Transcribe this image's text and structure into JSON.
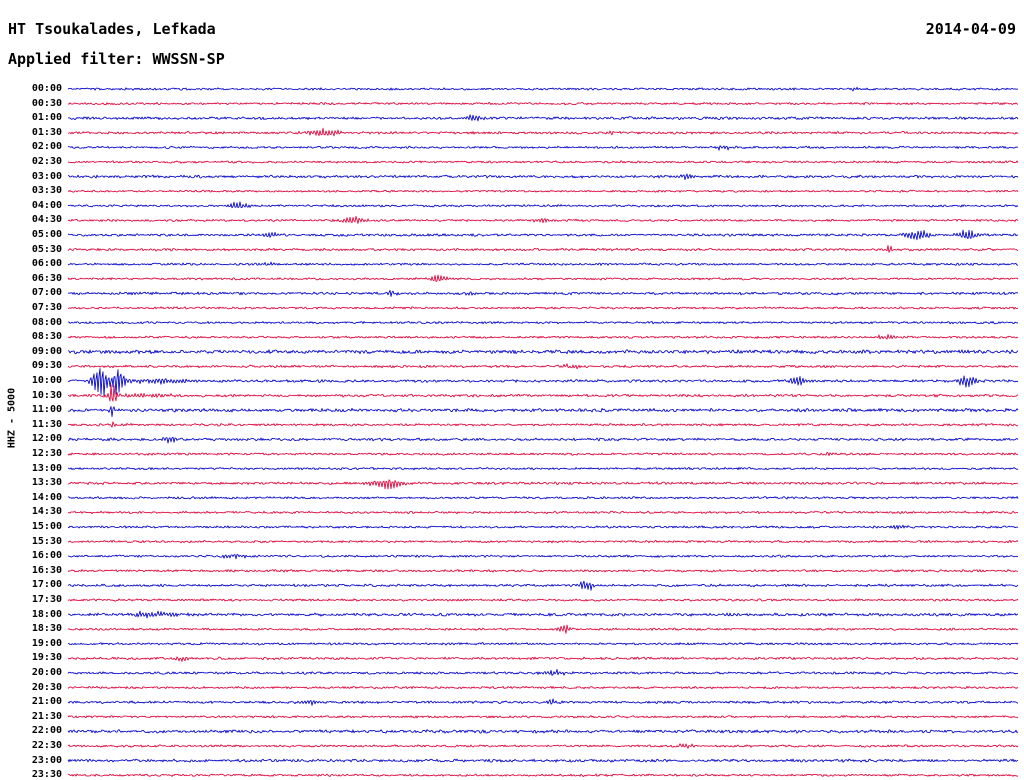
{
  "header": {
    "station": "HT Tsoukalades, Lefkada",
    "date": "2014-04-09",
    "filter": "Applied filter: WWSSN-SP"
  },
  "chart_data": {
    "type": "line",
    "title": "HT Tsoukalades, Lefkada",
    "subtitle": "Applied filter: WWSSN-SP",
    "date": "2014-04-09",
    "ylabel": "HHZ - 5000",
    "description": "24-hour helicorder seismogram, one trace per 30 minutes, alternating blue/red traces, events encoded as [position_fraction, amplitude_px, sigma_px]",
    "row_interval_minutes": 30,
    "colors": {
      "blue": "#0000cc",
      "red": "#e00038"
    },
    "rows": [
      {
        "t": "00:00",
        "c": "blue",
        "n": 1.0,
        "e": [
          [
            0.83,
            2,
            5
          ]
        ]
      },
      {
        "t": "00:30",
        "c": "red",
        "n": 1.0,
        "e": []
      },
      {
        "t": "01:00",
        "c": "blue",
        "n": 1.2,
        "e": [
          [
            0.425,
            4,
            7
          ]
        ]
      },
      {
        "t": "01:30",
        "c": "red",
        "n": 1.1,
        "e": [
          [
            0.27,
            5,
            11
          ],
          [
            0.57,
            2.5,
            5
          ]
        ]
      },
      {
        "t": "02:00",
        "c": "blue",
        "n": 1.0,
        "e": [
          [
            0.69,
            3,
            6
          ]
        ]
      },
      {
        "t": "02:30",
        "c": "red",
        "n": 1.0,
        "e": []
      },
      {
        "t": "03:00",
        "c": "blue",
        "n": 1.2,
        "e": [
          [
            0.65,
            3,
            5
          ]
        ]
      },
      {
        "t": "03:30",
        "c": "red",
        "n": 0.9,
        "e": []
      },
      {
        "t": "04:00",
        "c": "blue",
        "n": 1.0,
        "e": [
          [
            0.18,
            3.5,
            8
          ]
        ]
      },
      {
        "t": "04:30",
        "c": "red",
        "n": 1.0,
        "e": [
          [
            0.3,
            4,
            9
          ],
          [
            0.5,
            2.5,
            5
          ]
        ]
      },
      {
        "t": "05:00",
        "c": "blue",
        "n": 1.1,
        "e": [
          [
            0.215,
            3,
            6
          ],
          [
            0.895,
            6,
            9
          ],
          [
            0.947,
            7,
            7
          ]
        ]
      },
      {
        "t": "05:30",
        "c": "red",
        "n": 1.1,
        "e": [
          [
            0.865,
            5,
            3
          ]
        ]
      },
      {
        "t": "06:00",
        "c": "blue",
        "n": 1.0,
        "e": [
          [
            0.21,
            2.5,
            5
          ]
        ]
      },
      {
        "t": "06:30",
        "c": "red",
        "n": 1.0,
        "e": [
          [
            0.39,
            5,
            6
          ]
        ]
      },
      {
        "t": "07:00",
        "c": "blue",
        "n": 1.2,
        "e": [
          [
            0.34,
            2.5,
            5
          ],
          [
            0.425,
            2.5,
            5
          ]
        ]
      },
      {
        "t": "07:30",
        "c": "red",
        "n": 1.0,
        "e": []
      },
      {
        "t": "08:00",
        "c": "blue",
        "n": 1.0,
        "e": []
      },
      {
        "t": "08:30",
        "c": "red",
        "n": 1.0,
        "e": [
          [
            0.86,
            3,
            7
          ]
        ]
      },
      {
        "t": "09:00",
        "c": "blue",
        "n": 1.6,
        "e": []
      },
      {
        "t": "09:30",
        "c": "red",
        "n": 1.1,
        "e": [
          [
            0.53,
            3,
            7
          ]
        ]
      },
      {
        "t": "10:00",
        "c": "blue",
        "n": 1.2,
        "e": [
          [
            0.033,
            22,
            5
          ],
          [
            0.053,
            18,
            4
          ],
          [
            0.09,
            3,
            28
          ],
          [
            0.77,
            5,
            7
          ],
          [
            0.947,
            7,
            7
          ]
        ]
      },
      {
        "t": "10:30",
        "c": "red",
        "n": 1.2,
        "e": [
          [
            0.047,
            13,
            3
          ],
          [
            0.08,
            2.5,
            20
          ]
        ]
      },
      {
        "t": "11:00",
        "c": "blue",
        "n": 1.5,
        "e": [
          [
            0.047,
            9,
            2
          ]
        ]
      },
      {
        "t": "11:30",
        "c": "red",
        "n": 1.1,
        "e": [
          [
            0.047,
            5,
            2
          ]
        ]
      },
      {
        "t": "12:00",
        "c": "blue",
        "n": 1.2,
        "e": [
          [
            0.108,
            4,
            5
          ]
        ]
      },
      {
        "t": "12:30",
        "c": "red",
        "n": 1.0,
        "e": [
          [
            0.8,
            2.5,
            5
          ]
        ]
      },
      {
        "t": "13:00",
        "c": "blue",
        "n": 1.0,
        "e": []
      },
      {
        "t": "13:30",
        "c": "red",
        "n": 1.1,
        "e": [
          [
            0.335,
            6,
            11
          ]
        ]
      },
      {
        "t": "14:00",
        "c": "blue",
        "n": 1.0,
        "e": []
      },
      {
        "t": "14:30",
        "c": "red",
        "n": 1.0,
        "e": []
      },
      {
        "t": "15:00",
        "c": "blue",
        "n": 1.0,
        "e": [
          [
            0.875,
            3,
            6
          ]
        ]
      },
      {
        "t": "15:30",
        "c": "red",
        "n": 1.0,
        "e": []
      },
      {
        "t": "16:00",
        "c": "blue",
        "n": 1.0,
        "e": [
          [
            0.175,
            2.5,
            9
          ]
        ]
      },
      {
        "t": "16:30",
        "c": "red",
        "n": 1.0,
        "e": []
      },
      {
        "t": "17:00",
        "c": "blue",
        "n": 1.1,
        "e": [
          [
            0.545,
            7,
            5
          ]
        ]
      },
      {
        "t": "17:30",
        "c": "red",
        "n": 1.0,
        "e": []
      },
      {
        "t": "18:00",
        "c": "blue",
        "n": 1.3,
        "e": [
          [
            0.09,
            3,
            22
          ]
        ]
      },
      {
        "t": "18:30",
        "c": "red",
        "n": 1.0,
        "e": [
          [
            0.523,
            6,
            4
          ]
        ]
      },
      {
        "t": "19:00",
        "c": "blue",
        "n": 1.0,
        "e": []
      },
      {
        "t": "19:30",
        "c": "red",
        "n": 1.1,
        "e": [
          [
            0.12,
            3,
            6
          ]
        ]
      },
      {
        "t": "20:00",
        "c": "blue",
        "n": 1.1,
        "e": [
          [
            0.512,
            3.5,
            7
          ]
        ]
      },
      {
        "t": "20:30",
        "c": "red",
        "n": 1.0,
        "e": []
      },
      {
        "t": "21:00",
        "c": "blue",
        "n": 1.1,
        "e": [
          [
            0.255,
            3,
            6
          ],
          [
            0.51,
            3,
            6
          ]
        ]
      },
      {
        "t": "21:30",
        "c": "red",
        "n": 1.0,
        "e": []
      },
      {
        "t": "22:00",
        "c": "blue",
        "n": 1.4,
        "e": []
      },
      {
        "t": "22:30",
        "c": "red",
        "n": 1.0,
        "e": [
          [
            0.65,
            3.5,
            5
          ]
        ]
      },
      {
        "t": "23:00",
        "c": "blue",
        "n": 1.3,
        "e": []
      },
      {
        "t": "23:30",
        "c": "red",
        "n": 1.0,
        "e": []
      }
    ]
  }
}
